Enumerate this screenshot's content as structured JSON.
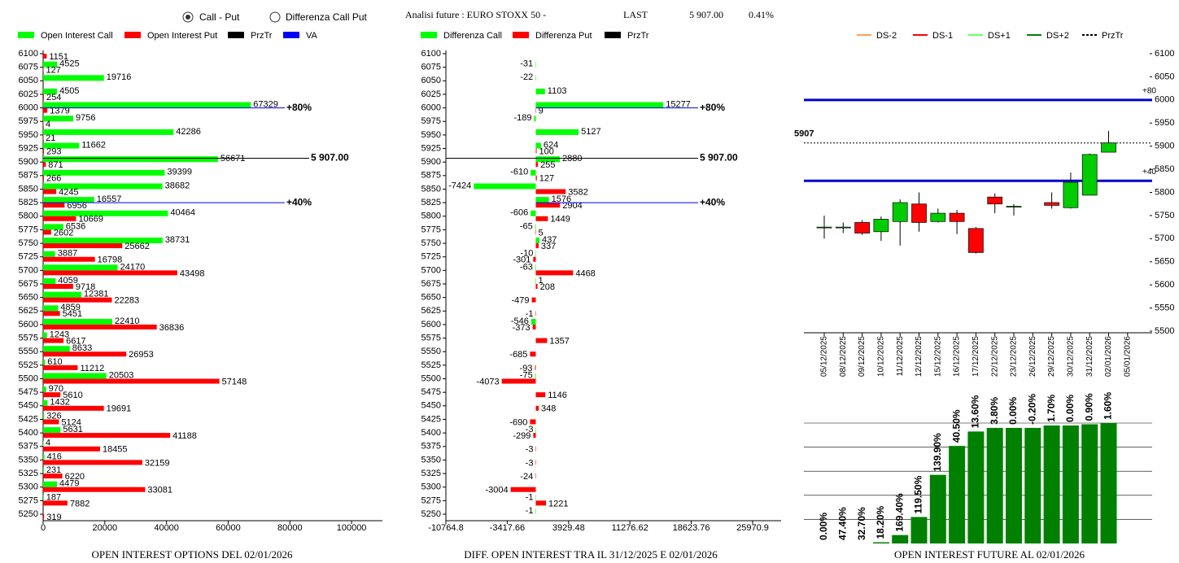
{
  "header": {
    "modes": [
      "Call - Put",
      "Differenza Call Put"
    ],
    "selected_mode": 0,
    "instrument": "Analisi future : EURO STOXX 50 -",
    "last_label": "LAST",
    "last": "5 907.00",
    "change": "0.41%"
  },
  "chart_data": [
    {
      "type": "hbar",
      "title": "OPEN INTEREST OPTIONS DEL 02/01/2026",
      "y": [
        6100,
        6075,
        6050,
        6025,
        6000,
        5975,
        5950,
        5925,
        5900,
        5875,
        5850,
        5825,
        5800,
        5775,
        5750,
        5725,
        5700,
        5675,
        5650,
        5625,
        5600,
        5575,
        5550,
        5525,
        5500,
        5475,
        5450,
        5425,
        5400,
        5375,
        5350,
        5325,
        5300,
        5275,
        5250
      ],
      "ylim": [
        5250,
        6100
      ],
      "xlim": [
        0,
        110000
      ],
      "xticks": [
        0,
        20000,
        40000,
        60000,
        80000,
        100000
      ],
      "series": [
        {
          "name": "Open Interest Call",
          "color": "#00ff00",
          "values": [
            null,
            4525,
            19716,
            4505,
            67329,
            9756,
            42286,
            11662,
            56671,
            39399,
            38682,
            16557,
            40464,
            6536,
            38731,
            3887,
            24170,
            4059,
            12381,
            4859,
            22410,
            1243,
            8633,
            610,
            20503,
            970,
            1432,
            326,
            5631,
            4,
            416,
            231,
            4479,
            187,
            null
          ]
        },
        {
          "name": "Open Interest Put",
          "color": "#ff0000",
          "values": [
            1151,
            127,
            null,
            254,
            1379,
            4,
            21,
            293,
            871,
            266,
            4245,
            6956,
            10669,
            2602,
            25662,
            16798,
            43498,
            9718,
            22283,
            5451,
            36836,
            6617,
            26953,
            11212,
            57148,
            5610,
            19691,
            5124,
            41188,
            18455,
            32159,
            6220,
            33081,
            7882,
            319
          ]
        }
      ],
      "levels": [
        {
          "name": "PrzTr",
          "color": "#000000",
          "marks": [
            {
              "value": 5907,
              "label": "5 907.00"
            }
          ]
        },
        {
          "name": "VA",
          "color": "#0000ff",
          "marks": [
            {
              "value": 6000,
              "label": "+80%"
            },
            {
              "value": 5825,
              "label": "+40%"
            }
          ]
        }
      ]
    },
    {
      "type": "hbar",
      "title": "DIFF. OPEN INTEREST TRA IL 31/12/2025 E 02/01/2026",
      "y": [
        6100,
        6075,
        6050,
        6025,
        6000,
        5975,
        5950,
        5925,
        5900,
        5875,
        5850,
        5825,
        5800,
        5775,
        5750,
        5725,
        5700,
        5675,
        5650,
        5625,
        5600,
        5575,
        5550,
        5525,
        5500,
        5475,
        5450,
        5425,
        5400,
        5375,
        5350,
        5325,
        5300,
        5275,
        5250
      ],
      "ylim": [
        5250,
        6100
      ],
      "xlim": [
        -10764.8,
        29380
      ],
      "xticks": [
        -10764.8,
        -3417.66,
        3929.48,
        11276.62,
        18623.76,
        25970.9
      ],
      "series": [
        {
          "name": "Differenza Call",
          "color": "#00ff00",
          "values": [
            null,
            -31,
            -22,
            1103,
            15277,
            -189,
            5127,
            624,
            2880,
            -610,
            -7424,
            1576,
            -606,
            -65,
            437,
            -10,
            -63,
            1,
            null,
            null,
            -546,
            null,
            null,
            null,
            -75,
            null,
            null,
            null,
            -3,
            null,
            null,
            null,
            null,
            -1,
            -1
          ]
        },
        {
          "name": "Differenza Put",
          "color": "#ff0000",
          "values": [
            null,
            null,
            null,
            null,
            9,
            null,
            null,
            100,
            255,
            127,
            3582,
            2904,
            1449,
            5,
            337,
            -301,
            4468,
            208,
            -479,
            -1,
            -373,
            1357,
            -685,
            -93,
            -4073,
            1146,
            348,
            -690,
            -299,
            -3,
            -3,
            -24,
            -3004,
            1221,
            null
          ]
        }
      ],
      "levels": [
        {
          "name": "PrzTr",
          "color": "#000000",
          "marks": [
            {
              "value": 5907,
              "label": "5 907.00"
            }
          ]
        },
        {
          "color": "#0000ff",
          "marks": [
            {
              "value": 6000,
              "label": "+80%"
            },
            {
              "value": 5825,
              "label": "+40%"
            }
          ]
        }
      ]
    },
    {
      "type": "candlestick",
      "categories": [
        "05/12/2025",
        "08/12/2025",
        "09/12/2025",
        "10/12/2025",
        "11/12/2025",
        "12/12/2025",
        "15/12/2025",
        "16/12/2025",
        "17/12/2025",
        "22/12/2025",
        "23/12/2025",
        "26/12/2025",
        "29/12/2025",
        "30/12/2025",
        "31/12/2025",
        "02/01/2026",
        "05/01/2026"
      ],
      "open": [
        5725,
        5725,
        5735,
        5715,
        5737,
        5775,
        5737,
        5755,
        5722,
        5790,
        5770,
        null,
        5778,
        5767,
        5794,
        5887,
        null
      ],
      "high": [
        5750,
        5735,
        5740,
        5748,
        5785,
        5800,
        5765,
        5762,
        5725,
        5798,
        5775,
        null,
        5800,
        5843,
        5884,
        5933,
        null
      ],
      "low": [
        5700,
        5712,
        5708,
        5695,
        5685,
        5715,
        5735,
        5710,
        5668,
        5755,
        5750,
        null,
        5765,
        5765,
        5794,
        5887,
        null
      ],
      "close": [
        5725,
        5725,
        5712,
        5742,
        5778,
        5735,
        5755,
        5737,
        5670,
        5775,
        5770,
        null,
        5772,
        5822,
        5882,
        5907,
        null
      ],
      "up_color": "#00cc00",
      "down_color": "#ff0000",
      "ylim": [
        5500,
        6100
      ],
      "yticks": [
        5500,
        5550,
        5600,
        5650,
        5700,
        5750,
        5800,
        5850,
        5900,
        5950,
        6000,
        6050,
        6100
      ],
      "legend": [
        {
          "name": "DS-2",
          "color": "#f4a460"
        },
        {
          "name": "DS-1",
          "color": "#ff0000"
        },
        {
          "name": "DS+1",
          "color": "#66ff66"
        },
        {
          "name": "DS+2",
          "color": "#008000"
        },
        {
          "name": "PrzTr",
          "color": "#000000",
          "dash": true
        }
      ],
      "levels": [
        {
          "color": "#0000cc",
          "marks": [
            {
              "value": 6000,
              "label": "+80"
            },
            {
              "value": 5825,
              "label": "+40"
            }
          ]
        },
        {
          "color": "#000000",
          "dash": true,
          "marks": [
            {
              "value": 5907,
              "label": "5907"
            }
          ]
        }
      ]
    },
    {
      "type": "bar",
      "title": "OPEN INTEREST FUTURE AL 02/01/2026",
      "values": [
        0,
        0,
        0,
        1,
        7,
        22,
        57,
        81,
        93,
        96,
        96,
        96,
        98,
        98,
        99,
        100
      ],
      "annotations": [
        "0.00%",
        "47.40%",
        "32.70%",
        "18.20%",
        "169.40%",
        "119.50%",
        "139.90%",
        "40.50%",
        "13.60%",
        "3.80%",
        "0.00%",
        "-0.20%",
        "1.70%",
        "0.00%",
        "0.90%",
        "1.60%"
      ],
      "color": "#008000",
      "ylim": [
        0,
        100
      ]
    }
  ]
}
